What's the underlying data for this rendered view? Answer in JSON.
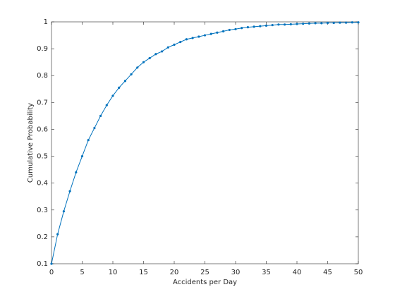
{
  "chart_data": {
    "type": "line",
    "x_label": "Accidents per Day",
    "y_label": "Cumulative Probability",
    "x": [
      0,
      1,
      2,
      3,
      4,
      5,
      6,
      7,
      8,
      9,
      10,
      11,
      12,
      13,
      14,
      15,
      16,
      17,
      18,
      19,
      20,
      21,
      22,
      23,
      24,
      25,
      26,
      27,
      28,
      29,
      30,
      31,
      32,
      33,
      34,
      35,
      36,
      37,
      38,
      39,
      40,
      41,
      42,
      43,
      44,
      45,
      46,
      47,
      48,
      49,
      50
    ],
    "series": [
      {
        "color": "#0072bd",
        "values": [
          0.1,
          0.21,
          0.295,
          0.37,
          0.44,
          0.5,
          0.56,
          0.605,
          0.65,
          0.69,
          0.725,
          0.755,
          0.78,
          0.805,
          0.83,
          0.85,
          0.865,
          0.88,
          0.89,
          0.905,
          0.915,
          0.925,
          0.935,
          0.94,
          0.945,
          0.95,
          0.955,
          0.96,
          0.965,
          0.97,
          0.973,
          0.977,
          0.98,
          0.982,
          0.984,
          0.986,
          0.988,
          0.99,
          0.99,
          0.991,
          0.992,
          0.993,
          0.994,
          0.995,
          0.995,
          0.996,
          0.996,
          0.997,
          0.997,
          0.998,
          0.998
        ]
      }
    ],
    "xlim": [
      0,
      50
    ],
    "xticks": [
      0,
      5,
      10,
      15,
      20,
      25,
      30,
      35,
      40,
      45,
      50
    ],
    "ylim": [
      0.1,
      1
    ],
    "yticks": [
      0.1,
      0.2,
      0.3,
      0.4,
      0.5,
      0.6,
      0.7,
      0.8,
      0.9,
      1
    ],
    "grid": false
  }
}
